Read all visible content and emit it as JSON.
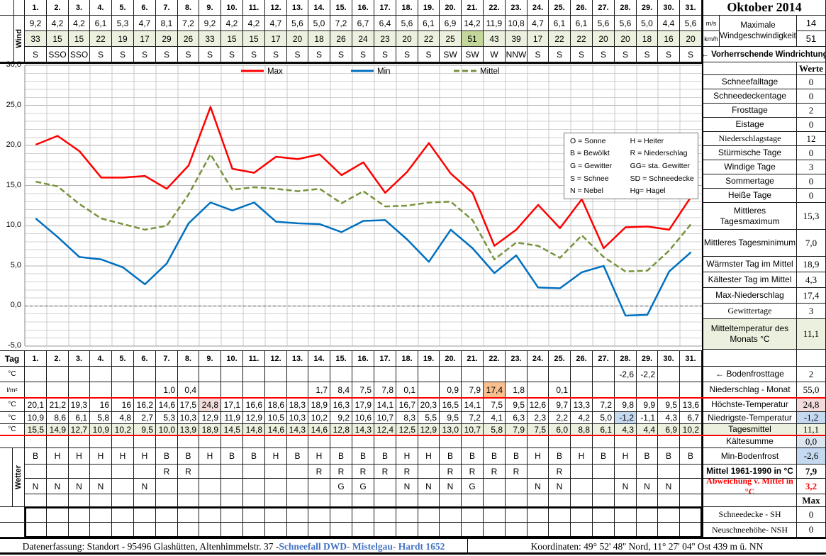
{
  "title": "Oktober 2014",
  "days": [
    "1.",
    "2.",
    "3.",
    "4.",
    "5.",
    "6.",
    "7.",
    "8.",
    "9.",
    "10.",
    "11.",
    "12.",
    "13.",
    "14.",
    "15.",
    "16.",
    "17.",
    "18.",
    "19.",
    "20.",
    "21.",
    "22.",
    "23.",
    "24.",
    "25.",
    "26.",
    "27.",
    "28.",
    "29.",
    "30.",
    "31."
  ],
  "wind": {
    "row_label": "Wind",
    "ms_values": [
      "9,2",
      "4,2",
      "4,2",
      "6,1",
      "5,3",
      "4,7",
      "8,1",
      "7,2",
      "9,2",
      "4,2",
      "4,2",
      "4,7",
      "5,6",
      "5,0",
      "7,2",
      "6,7",
      "6,4",
      "5,6",
      "6,1",
      "6,9",
      "14,2",
      "11,9",
      "10,8",
      "4,7",
      "6,1",
      "6,1",
      "5,6",
      "5,6",
      "5,0",
      "4,4",
      "5,6"
    ],
    "kmh_values": [
      "33",
      "15",
      "15",
      "22",
      "19",
      "17",
      "29",
      "26",
      "33",
      "15",
      "15",
      "17",
      "20",
      "18",
      "26",
      "24",
      "23",
      "20",
      "22",
      "25",
      "51",
      "43",
      "39",
      "17",
      "22",
      "22",
      "20",
      "20",
      "18",
      "16",
      "20"
    ],
    "directions": [
      "S",
      "SSO",
      "SSO",
      "S",
      "S",
      "S",
      "S",
      "S",
      "S",
      "S",
      "S",
      "S",
      "S",
      "S",
      "S",
      "S",
      "S",
      "S",
      "S",
      "SW",
      "SW",
      "W",
      "NNW",
      "S",
      "S",
      "S",
      "S",
      "S",
      "S",
      "S",
      "S"
    ],
    "kmh_highlight_index": 20,
    "unit_ms": "m/s",
    "unit_kmh": "km/h",
    "max_label_line1": "Maximale",
    "max_label_line2": "Windgeschwindigkeit",
    "max_ms": "14",
    "max_kmh": "51",
    "direction_note": "← Vorherrschende Windrichtung"
  },
  "chart_data": {
    "type": "line",
    "x": [
      1,
      2,
      3,
      4,
      5,
      6,
      7,
      8,
      9,
      10,
      11,
      12,
      13,
      14,
      15,
      16,
      17,
      18,
      19,
      20,
      21,
      22,
      23,
      24,
      25,
      26,
      27,
      28,
      29,
      30,
      31
    ],
    "series": [
      {
        "name": "Max",
        "color": "#FF0000",
        "dashed": false,
        "values": [
          20.1,
          21.2,
          19.3,
          16,
          16,
          16.2,
          14.6,
          17.5,
          24.8,
          17.1,
          16.6,
          18.6,
          18.3,
          18.9,
          16.3,
          17.9,
          14.1,
          16.7,
          20.3,
          16.5,
          14.1,
          7.5,
          9.5,
          12.6,
          9.7,
          13.3,
          7.2,
          9.8,
          9.9,
          9.5,
          13.6
        ]
      },
      {
        "name": "Min",
        "color": "#0070C0",
        "dashed": false,
        "values": [
          10.9,
          8.6,
          6.1,
          5.8,
          4.8,
          2.7,
          5.3,
          10.3,
          12.9,
          11.9,
          12.9,
          10.5,
          10.3,
          10.2,
          9.2,
          10.6,
          10.7,
          8.3,
          5.5,
          9.5,
          7.2,
          4.1,
          6.3,
          2.3,
          2.2,
          4.2,
          5.0,
          -1.2,
          -1.1,
          4.3,
          6.7
        ]
      },
      {
        "name": "Mittel",
        "color": "#77933C",
        "dashed": true,
        "values": [
          15.5,
          14.9,
          12.7,
          10.9,
          10.2,
          9.5,
          10.0,
          13.9,
          18.9,
          14.5,
          14.8,
          14.6,
          14.3,
          14.6,
          12.8,
          14.3,
          12.4,
          12.5,
          12.9,
          13.0,
          10.7,
          5.8,
          7.9,
          7.5,
          6.0,
          8.8,
          6.1,
          4.3,
          4.4,
          6.9,
          10.2
        ]
      }
    ],
    "ylim": [
      -5,
      30
    ],
    "ytick_labels": [
      "30,0",
      "25,0",
      "20,0",
      "15,0",
      "10,0",
      "5,0",
      "0,0",
      "-5,0"
    ],
    "ytick_values": [
      30,
      25,
      20,
      15,
      10,
      5,
      0,
      -5
    ],
    "grid": true,
    "legend_position": "top-inside"
  },
  "weather_codes": {
    "pairs": [
      [
        "O = Sonne",
        "H = Heiter"
      ],
      [
        "B = Bewölkt",
        "R = Niederschlag"
      ],
      [
        "G = Gewitter",
        "GG= sta. Gewitter"
      ],
      [
        "S = Schnee",
        "SD = Schneedecke"
      ],
      [
        "N = Nebel",
        "Hg= Hagel"
      ]
    ]
  },
  "stats_header": "Werte",
  "stats_top": [
    {
      "label": "Schneefalltage",
      "value": "0"
    },
    {
      "label": "Schneedeckentage",
      "value": "0"
    },
    {
      "label": "Frosttage",
      "value": "2"
    },
    {
      "label": "Eistage",
      "value": "0"
    },
    {
      "label": "Niederschlagstage",
      "value": "12",
      "serif": true
    },
    {
      "label": "Stürmische Tage",
      "value": "0"
    },
    {
      "label": "Windige Tage",
      "value": "3"
    },
    {
      "label": "Sommertage",
      "value": "0"
    },
    {
      "label": "Heiße Tage",
      "value": "0"
    },
    {
      "label": "Mittleres Tagesmaximum",
      "value": "15,3"
    },
    {
      "label": "Mittleres Tagesminimum",
      "value": "7,0"
    },
    {
      "label": "Wärmster Tag im Mittel",
      "value": "18,9"
    },
    {
      "label": "Kältester Tag im Mittel",
      "value": "4,3"
    },
    {
      "label": "Max-Niederschlag",
      "value": "17,4"
    },
    {
      "label": "Gewittertage",
      "value": "3",
      "serif": true
    },
    {
      "label": "Mitteltemperatur des Monats °C",
      "value": "11,1",
      "bg": "green"
    }
  ],
  "stats_bottom": [
    {
      "label": "← Bodenfrosttage",
      "value": "2"
    },
    {
      "label": "Niederschlag - Monat",
      "value": "55,0"
    },
    {
      "label": "Höchste-Temperatur",
      "value": "24,8",
      "vbg": "pink"
    },
    {
      "label": "Niedrigste-Temperatur",
      "value": "-1,2",
      "vbg": "blue"
    },
    {
      "label": "Tagesmittel",
      "value": "11,1",
      "bg": "green"
    },
    {
      "label": "Kältesumme",
      "value": "0,0",
      "vbg": "lblue"
    },
    {
      "label": "Min-Bodenfrost",
      "value": "-2,6",
      "vbg": "blue"
    },
    {
      "label": "Mittel 1961-1990 in °C",
      "value": "7,9",
      "bold": true
    },
    {
      "label": "Abweichung v. Mittel in °C",
      "value": "3,2",
      "red": true,
      "serif": true,
      "bold": true
    },
    {
      "label": "",
      "value": "Max",
      "bold": true,
      "serif": true
    },
    {
      "label": "Schneedecke -  SH",
      "value": "0",
      "serif": true
    },
    {
      "label": "Neuschneehöhe- NSH",
      "value": "0",
      "serif": true
    }
  ],
  "daily": {
    "tag_label": "Tag",
    "wetter_label": "Wetter",
    "unit_c": "°C",
    "unit_lm2": "l/m²",
    "bodenfrost": [
      "",
      "",
      "",
      "",
      "",
      "",
      "",
      "",
      "",
      "",
      "",
      "",
      "",
      "",
      "",
      "",
      "",
      "",
      "",
      "",
      "",
      "",
      "",
      "",
      "",
      "",
      "",
      "-2,6",
      "-2,2",
      "",
      ""
    ],
    "precip": [
      "",
      "",
      "",
      "",
      "",
      "",
      "1,0",
      "0,4",
      "",
      "",
      "",
      "",
      "",
      "1,7",
      "8,4",
      "7,5",
      "7,8",
      "0,1",
      "",
      "0,9",
      "7,9",
      "17,4",
      "1,8",
      "",
      "0,1",
      "",
      "",
      "",
      "",
      "",
      ""
    ],
    "tmax": [
      "20,1",
      "21,2",
      "19,3",
      "16",
      "16",
      "16,2",
      "14,6",
      "17,5",
      "24,8",
      "17,1",
      "16,6",
      "18,6",
      "18,3",
      "18,9",
      "16,3",
      "17,9",
      "14,1",
      "16,7",
      "20,3",
      "16,5",
      "14,1",
      "7,5",
      "9,5",
      "12,6",
      "9,7",
      "13,3",
      "7,2",
      "9,8",
      "9,9",
      "9,5",
      "13,6"
    ],
    "tmin": [
      "10,9",
      "8,6",
      "6,1",
      "5,8",
      "4,8",
      "2,7",
      "5,3",
      "10,3",
      "12,9",
      "11,9",
      "12,9",
      "10,5",
      "10,3",
      "10,2",
      "9,2",
      "10,6",
      "10,7",
      "8,3",
      "5,5",
      "9,5",
      "7,2",
      "4,1",
      "6,3",
      "2,3",
      "2,2",
      "4,2",
      "5,0",
      "-1,2",
      "-1,1",
      "4,3",
      "6,7"
    ],
    "tmittel": [
      "15,5",
      "14,9",
      "12,7",
      "10,9",
      "10,2",
      "9,5",
      "10,0",
      "13,9",
      "18,9",
      "14,5",
      "14,8",
      "14,6",
      "14,3",
      "14,6",
      "12,8",
      "14,3",
      "12,4",
      "12,5",
      "12,9",
      "13,0",
      "10,7",
      "5,8",
      "7,9",
      "7,5",
      "6,0",
      "8,8",
      "6,1",
      "4,3",
      "4,4",
      "6,9",
      "10,2"
    ],
    "condition": [
      "B",
      "H",
      "H",
      "H",
      "H",
      "H",
      "B",
      "B",
      "H",
      "B",
      "B",
      "H",
      "B",
      "H",
      "B",
      "B",
      "B",
      "H",
      "H",
      "B",
      "B",
      "B",
      "B",
      "H",
      "B",
      "H",
      "B",
      "H",
      "B",
      "B",
      "B"
    ],
    "rain_flags": [
      "",
      "",
      "",
      "",
      "",
      "",
      "R",
      "R",
      "",
      "",
      "",
      "",
      "",
      "R",
      "R",
      "R",
      "R",
      "R",
      "",
      "R",
      "R",
      "R",
      "R",
      "",
      "R",
      "",
      "",
      "",
      "",
      "",
      ""
    ],
    "fog_thunder": [
      "N",
      "N",
      "N",
      "N",
      "",
      "N",
      "",
      "",
      "",
      "",
      "",
      "",
      "",
      "",
      "G",
      "G",
      "",
      "N",
      "N",
      "N",
      "G",
      "",
      "",
      "N",
      "N",
      "",
      "",
      "N",
      "N",
      "N",
      ""
    ]
  },
  "footer": {
    "left_black": "Datenerfassung:  Standort -  95496  Glashütten, Altenhimmelstr. 37 - ",
    "left_blue": "Schneefall DWD- Mistelgau- Hardt 1652",
    "right": "Koordinaten:  49° 52' 48'' Nord,   11° 27' 04'' Ost   439 m ü. NN"
  },
  "colors": {
    "green": "#EBF1DE",
    "dark_green": "#C4D79B",
    "pink": "#F2DCDB",
    "orange": "#FABF8F",
    "blue": "#C5D9F1",
    "light_blue": "#DCE6F1",
    "footer_blue": "#4472C4",
    "red": "#FF0000"
  }
}
